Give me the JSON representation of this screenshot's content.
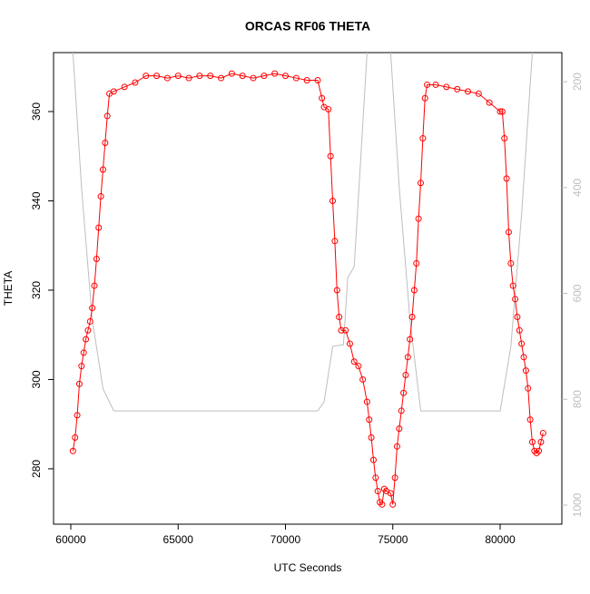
{
  "chart_data": {
    "type": "line",
    "title": "ORCAS RF06 THETA",
    "xlabel": "UTC Seconds",
    "ylabel": "THETA",
    "xlim": [
      59197,
      82875
    ],
    "xticks": [
      60000,
      65000,
      70000,
      75000,
      80000
    ],
    "ylim": [
      267.6,
      373.2
    ],
    "yticks": [
      280,
      300,
      320,
      340,
      360
    ],
    "y2lim": [
      1036,
      145
    ],
    "y2ticks": [
      200,
      400,
      600,
      800,
      1000
    ],
    "series": [
      {
        "color": "#ff0000",
        "marker": "circle",
        "x": [
          60100,
          60200,
          60300,
          60400,
          60500,
          60600,
          60700,
          60800,
          60900,
          61000,
          61100,
          61200,
          61300,
          61400,
          61500,
          61600,
          61700,
          61800,
          62000,
          62500,
          63000,
          63500,
          64000,
          64500,
          65000,
          65500,
          66000,
          66500,
          67000,
          67500,
          68000,
          68500,
          69000,
          69500,
          70000,
          70500,
          71000,
          71500,
          71700,
          71800,
          72000,
          72100,
          72200,
          72300,
          72400,
          72500,
          72600,
          72800,
          73000,
          73200,
          73400,
          73600,
          73800,
          73900,
          74000,
          74100,
          74200,
          74300,
          74400,
          74500,
          74600,
          74700,
          74900,
          75000,
          75100,
          75200,
          75300,
          75400,
          75500,
          75600,
          75700,
          75800,
          75900,
          76000,
          76100,
          76200,
          76300,
          76400,
          76500,
          76600,
          77000,
          77500,
          78000,
          78500,
          79000,
          79500,
          80000,
          80100,
          80200,
          80300,
          80400,
          80500,
          80600,
          80700,
          80800,
          80900,
          81000,
          81100,
          81200,
          81300,
          81400,
          81500,
          81600,
          81700,
          81800,
          81900,
          82000
        ],
        "values": [
          284,
          287,
          292,
          299,
          303,
          306,
          309,
          311,
          313,
          316,
          321,
          327,
          334,
          341,
          347,
          353,
          359,
          364,
          364.5,
          365.5,
          366.5,
          368,
          368,
          367.5,
          368,
          367.5,
          368,
          368,
          367.5,
          368.5,
          368,
          367.5,
          368,
          368.5,
          368,
          367.5,
          367,
          367,
          363,
          361,
          360.5,
          350,
          340,
          331,
          320,
          314,
          311,
          311,
          308,
          304,
          303,
          300,
          295,
          291,
          287,
          282,
          278,
          275,
          272.5,
          272,
          275.5,
          275,
          274.5,
          272,
          278,
          285,
          289,
          293,
          297,
          301,
          305,
          309,
          314,
          320,
          326,
          336,
          344,
          354,
          363,
          366,
          366,
          365.5,
          365,
          364.5,
          364,
          362,
          360,
          360,
          354,
          345,
          333,
          326,
          321,
          318,
          314,
          311,
          308,
          305,
          302,
          298,
          291,
          286,
          284,
          283.5,
          284,
          286,
          288
        ]
      },
      {
        "color": "#bebebe",
        "axis": "y2",
        "x": [
          60100,
          60500,
          61000,
          61500,
          62000,
          71500,
          71800,
          72200,
          72700,
          72900,
          73200,
          73500,
          73800,
          74300,
          74900,
          75300,
          75800,
          76300,
          80000,
          80500,
          81000,
          81500
        ],
        "values": [
          145,
          400,
          650,
          780,
          822,
          822,
          805,
          700,
          697,
          570,
          550,
          350,
          145,
          null,
          145,
          400,
          650,
          822,
          822,
          700,
          450,
          145
        ]
      }
    ]
  }
}
